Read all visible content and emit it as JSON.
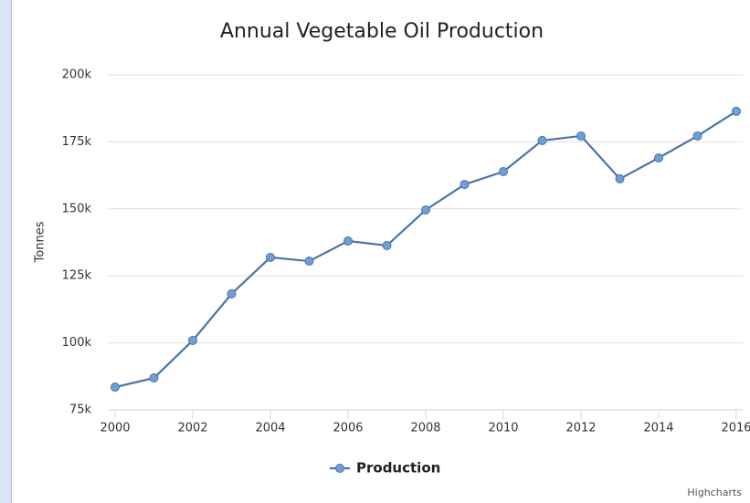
{
  "chart_data": {
    "type": "line",
    "title": "Annual Vegetable Oil Production",
    "y_label": "Tonnes",
    "x": [
      2000,
      2001,
      2002,
      2003,
      2004,
      2005,
      2006,
      2007,
      2008,
      2009,
      2010,
      2011,
      2012,
      2013,
      2014,
      2015,
      2016
    ],
    "series": [
      {
        "name": "Production",
        "color": "#4a74a6",
        "marker_color": "#6f9fd8",
        "values": [
          83500,
          86900,
          100900,
          118300,
          131900,
          130500,
          138000,
          136300,
          149600,
          159100,
          163900,
          175500,
          177200,
          161200,
          169000,
          177200,
          186400
        ]
      }
    ],
    "xlim": [
      2000,
      2016
    ],
    "xticks": [
      2000,
      2002,
      2004,
      2006,
      2008,
      2010,
      2012,
      2014,
      2016
    ],
    "ylim": [
      75000,
      200000
    ],
    "yticks": [
      {
        "value": 75000,
        "label": "75k"
      },
      {
        "value": 100000,
        "label": "100k"
      },
      {
        "value": 125000,
        "label": "125k"
      },
      {
        "value": 150000,
        "label": "150k"
      },
      {
        "value": 175000,
        "label": "175k"
      },
      {
        "value": 200000,
        "label": "200k"
      }
    ],
    "grid": true,
    "legend": "bottom",
    "credits": "Highcharts"
  }
}
